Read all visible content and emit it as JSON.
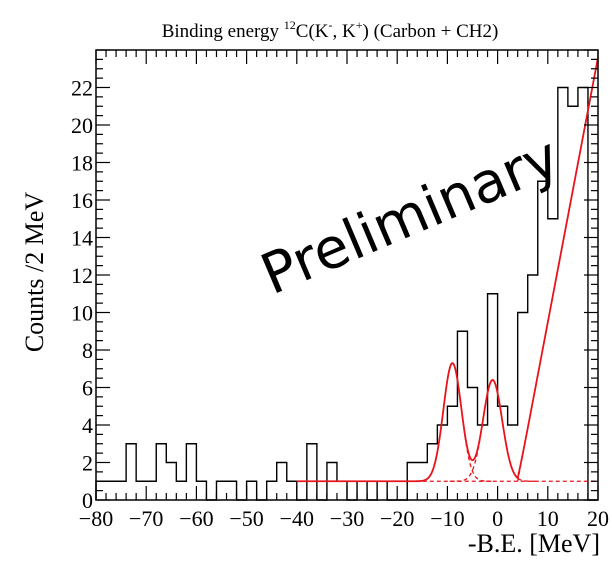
{
  "chart_data": {
    "type": "histogram",
    "title_prefix": "Binding energy ",
    "title_sup1": "12",
    "title_mid1": "C(K",
    "title_sup2": "-",
    "title_mid2": ", K",
    "title_sup3": "+",
    "title_suffix": ") (Carbon + CH2)",
    "xlabel": "-B.E. [MeV]",
    "ylabel": "Counts /2 MeV",
    "watermark": "Preliminary",
    "xlim": [
      -80,
      20
    ],
    "ylim": [
      0,
      24
    ],
    "x_ticks": [
      -80,
      -70,
      -60,
      -50,
      -40,
      -30,
      -20,
      -10,
      0,
      10,
      20
    ],
    "y_ticks": [
      0,
      2,
      4,
      6,
      8,
      10,
      12,
      14,
      16,
      18,
      20,
      22
    ],
    "bin_width": 2,
    "bins_x_start": -80,
    "counts": [
      1,
      1,
      1,
      3,
      1,
      1,
      3,
      2,
      1,
      3,
      1,
      0,
      1,
      1,
      0,
      1,
      0,
      1,
      2,
      1,
      0,
      3,
      0,
      2,
      1,
      0,
      1,
      0,
      1,
      0,
      0,
      2,
      2,
      3,
      4,
      5,
      9,
      6,
      4,
      11,
      5,
      4,
      10,
      12,
      17,
      15,
      22,
      21,
      22,
      0
    ],
    "colors": {
      "histogram": "#000000",
      "fit": "#e8141b"
    },
    "fit": {
      "range": [
        -40,
        20
      ],
      "background_level": 1,
      "peaks": [
        {
          "mean": -9,
          "sigma": 1.8,
          "amplitude": 6.3
        },
        {
          "mean": -1,
          "sigma": 1.9,
          "amplitude": 5.4
        }
      ],
      "linear_background": {
        "start": 4,
        "end": 20,
        "level_at_end": 23.6
      }
    }
  }
}
